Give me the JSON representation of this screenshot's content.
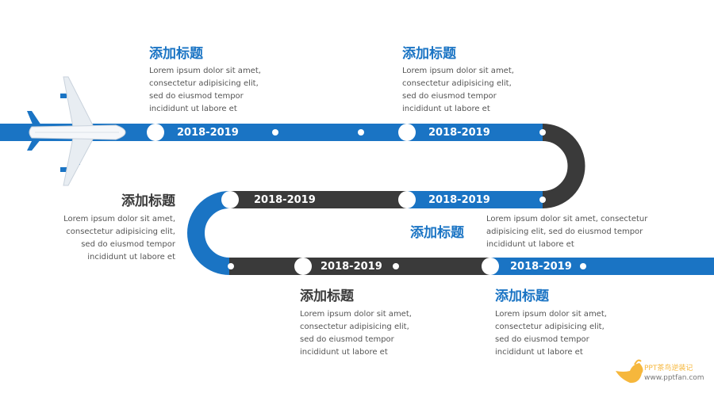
{
  "milestones": [
    {
      "year": "2018-2019",
      "title": "添加标题",
      "lines": [
        "Lorem ipsum dolor sit amet,",
        "consectetur adipisicing elit,",
        "sed do eiusmod tempor",
        "incididunt ut labore et"
      ]
    },
    {
      "year": "2018-2019",
      "title": "添加标题",
      "lines": [
        "Lorem ipsum dolor sit amet,",
        "consectetur adipisicing elit,",
        "sed do eiusmod tempor",
        "incididunt ut labore et"
      ]
    },
    {
      "year": "2018-2019",
      "title": "添加标题",
      "lines": [
        "Lorem ipsum dolor sit amet,  consectetur",
        "adipisicing elit, sed do eiusmod tempor",
        "incididunt ut labore et"
      ]
    },
    {
      "year": "2018-2019",
      "title": "添加标题",
      "lines": [
        "Lorem ipsum dolor sit amet,",
        "consectetur adipisicing elit,",
        "sed do eiusmod tempor",
        "incididunt ut labore et"
      ]
    },
    {
      "year": "2018-2019",
      "title": "添加标题",
      "lines": [
        "Lorem ipsum dolor sit amet,",
        "consectetur adipisicing elit,",
        "sed do eiusmod tempor",
        "incididunt ut labore et"
      ]
    },
    {
      "year": "2018-2019",
      "title": "添加标题",
      "lines": [
        "Lorem ipsum dolor sit amet,",
        "consectetur adipisicing elit,",
        "sed do eiusmod tempor",
        "incididunt ut labore et"
      ]
    }
  ],
  "logo": {
    "name": "PPT茶鸟逆装记",
    "url": "www.pptfan.com"
  },
  "colors": {
    "blue": "#1a74c4",
    "dark": "#3a3a3a",
    "logo": "#f6b73c"
  }
}
